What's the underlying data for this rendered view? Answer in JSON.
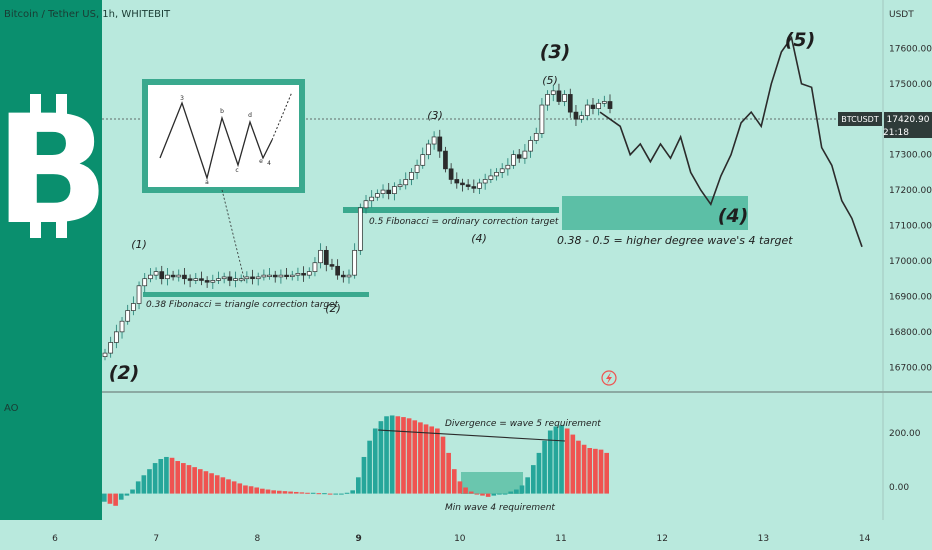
{
  "header": {
    "symbol_line": "Bitcoin / Tether US, 1h, WHITEBIT",
    "currency": "USDT"
  },
  "price_axis": {
    "ticks": [
      "17600.00",
      "17500.00",
      "17400.00",
      "17300.00",
      "17200.00",
      "17100.00",
      "17000.00",
      "16900.00",
      "16800.00",
      "16700.00"
    ],
    "badge_symbol": "BTCUSDT",
    "badge_price": "17420.90",
    "badge_time": "21:18"
  },
  "time_axis": {
    "ticks": [
      "6",
      "7",
      "8",
      "9",
      "10",
      "11",
      "12",
      "13",
      "14"
    ],
    "bold_tick": "9"
  },
  "indicator": {
    "name": "AO",
    "ticks": [
      "200.00",
      "0.00"
    ]
  },
  "colors": {
    "up": "#26a69a",
    "down": "#ef5350",
    "background": "#b9e9dd",
    "logo_panel": "#0a8f6e",
    "zone": "#5cbfa6",
    "line": "#2b2b2b"
  },
  "annotations": {
    "big_wave_labels": [
      "(2)",
      "(3)",
      "(4)",
      "(5)"
    ],
    "small_wave_labels": [
      "(1)",
      "(2)",
      "(3)",
      "(4)",
      "(5)"
    ],
    "fib_038": "0.38 Fibonacci = triangle correction target",
    "fib_05": "0.5 Fibonacci = ordinary correction target",
    "higher_degree": "0.38 - 0.5 = higher degree wave's 4 target",
    "divergence": "Divergence  = wave 5 requirement",
    "min_wave4": "Min wave 4 requirement",
    "triangle_letters": [
      "3",
      "a",
      "b",
      "c",
      "d",
      "e",
      "4"
    ]
  },
  "chart_data": {
    "type": "candlestick",
    "title": "Bitcoin / Tether US, 1h, WHITEBIT",
    "ylabel": "USDT",
    "ylim": [
      16650,
      17680
    ],
    "x_ticks": [
      "6",
      "7",
      "8",
      "9",
      "10",
      "11",
      "12",
      "13",
      "14"
    ],
    "grid": false,
    "ohlc_close_path": [
      16740,
      16770,
      16800,
      16830,
      16860,
      16880,
      16930,
      16950,
      16960,
      16970,
      16950,
      16960,
      16955,
      16960,
      16950,
      16945,
      16950,
      16945,
      16940,
      16945,
      16950,
      16955,
      16945,
      16950,
      16950,
      16955,
      16950,
      16955,
      16960,
      16960,
      16955,
      16960,
      16958,
      16960,
      16965,
      16960,
      16970,
      16995,
      17030,
      16990,
      16985,
      16960,
      16955,
      16960,
      17030,
      17150,
      17170,
      17180,
      17190,
      17200,
      17190,
      17210,
      17215,
      17230,
      17250,
      17270,
      17300,
      17330,
      17350,
      17310,
      17260,
      17230,
      17220,
      17215,
      17210,
      17205,
      17220,
      17230,
      17240,
      17250,
      17260,
      17270,
      17300,
      17290,
      17310,
      17340,
      17360,
      17440,
      17470,
      17480,
      17450,
      17470,
      17420,
      17400,
      17410,
      17440,
      17430,
      17445,
      17450,
      17430
    ],
    "projection": [
      17420,
      17400,
      17380,
      17300,
      17330,
      17280,
      17330,
      17290,
      17350,
      17250,
      17200,
      17160,
      17240,
      17300,
      17390,
      17420,
      17380,
      17500,
      17590,
      17630,
      17500,
      17490,
      17320,
      17270,
      17170,
      17120,
      17040
    ],
    "ao_values": [
      -20,
      -25,
      -30,
      -15,
      -5,
      10,
      30,
      45,
      60,
      75,
      85,
      90,
      88,
      80,
      75,
      70,
      65,
      60,
      55,
      50,
      45,
      40,
      35,
      30,
      25,
      20,
      18,
      15,
      12,
      10,
      8,
      7,
      6,
      5,
      4,
      3,
      2,
      2,
      1,
      1,
      0,
      0,
      0,
      2,
      8,
      40,
      90,
      130,
      160,
      178,
      190,
      192,
      190,
      188,
      185,
      180,
      175,
      170,
      165,
      160,
      140,
      100,
      60,
      30,
      15,
      5,
      -2,
      -5,
      -8,
      -5,
      -2,
      0,
      5,
      10,
      20,
      40,
      70,
      100,
      130,
      155,
      165,
      168,
      160,
      145,
      130,
      120,
      112,
      110,
      108,
      100
    ],
    "ao_ylim": [
      -60,
      230
    ],
    "ao_ticks": [
      200,
      0
    ]
  }
}
